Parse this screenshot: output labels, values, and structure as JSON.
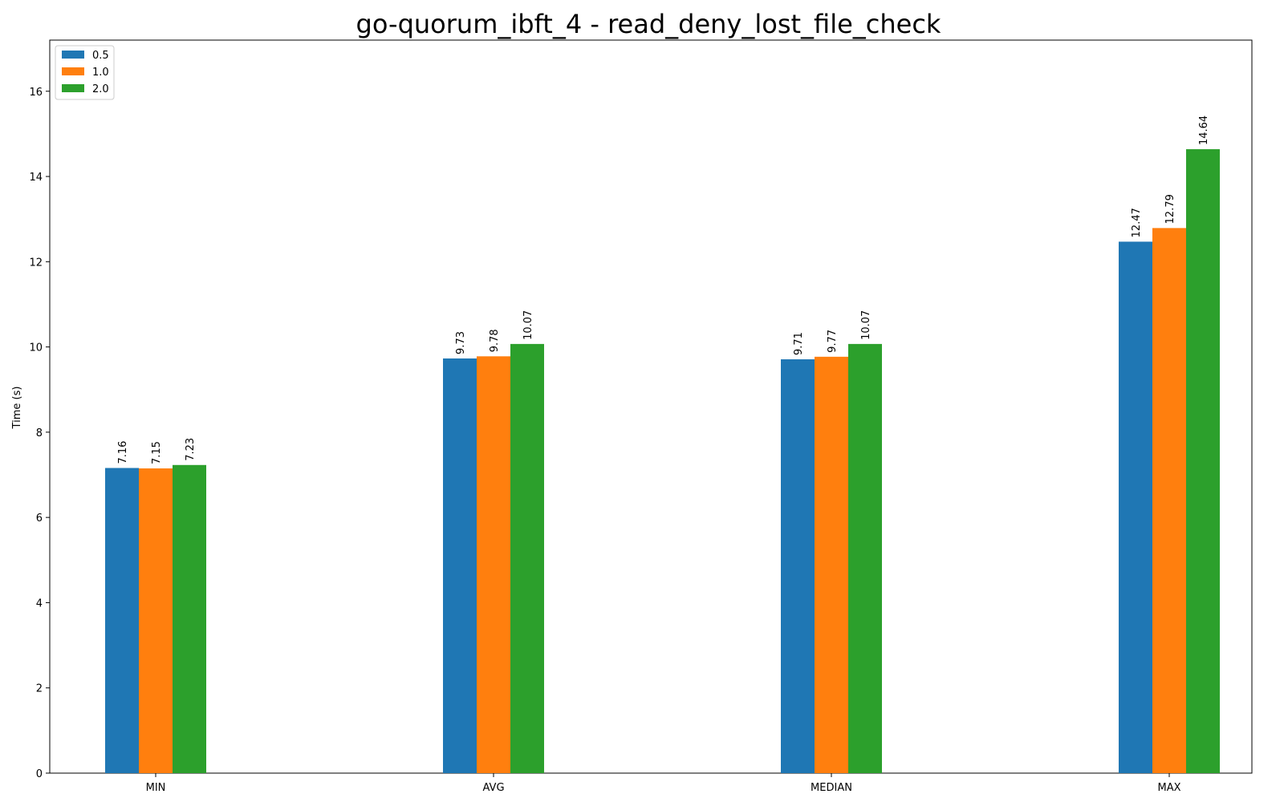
{
  "chart_data": {
    "type": "bar",
    "title": "go-quorum_ibft_4 - read_deny_lost_file_check",
    "xlabel": "",
    "ylabel": "Time (s)",
    "categories": [
      "MIN",
      "AVG",
      "MEDIAN",
      "MAX"
    ],
    "ylim": [
      0,
      17.2
    ],
    "yticks": [
      0,
      2,
      4,
      6,
      8,
      10,
      12,
      14,
      16
    ],
    "grid": false,
    "legend_placement": "top-left",
    "series": [
      {
        "name": "0.5",
        "color": "#1f77b4",
        "values": [
          7.16,
          9.73,
          9.71,
          12.47
        ]
      },
      {
        "name": "1.0",
        "color": "#ff7f0e",
        "values": [
          7.15,
          9.78,
          9.77,
          12.79
        ]
      },
      {
        "name": "2.0",
        "color": "#2ca02c",
        "values": [
          7.23,
          10.07,
          10.07,
          14.64
        ]
      }
    ]
  }
}
